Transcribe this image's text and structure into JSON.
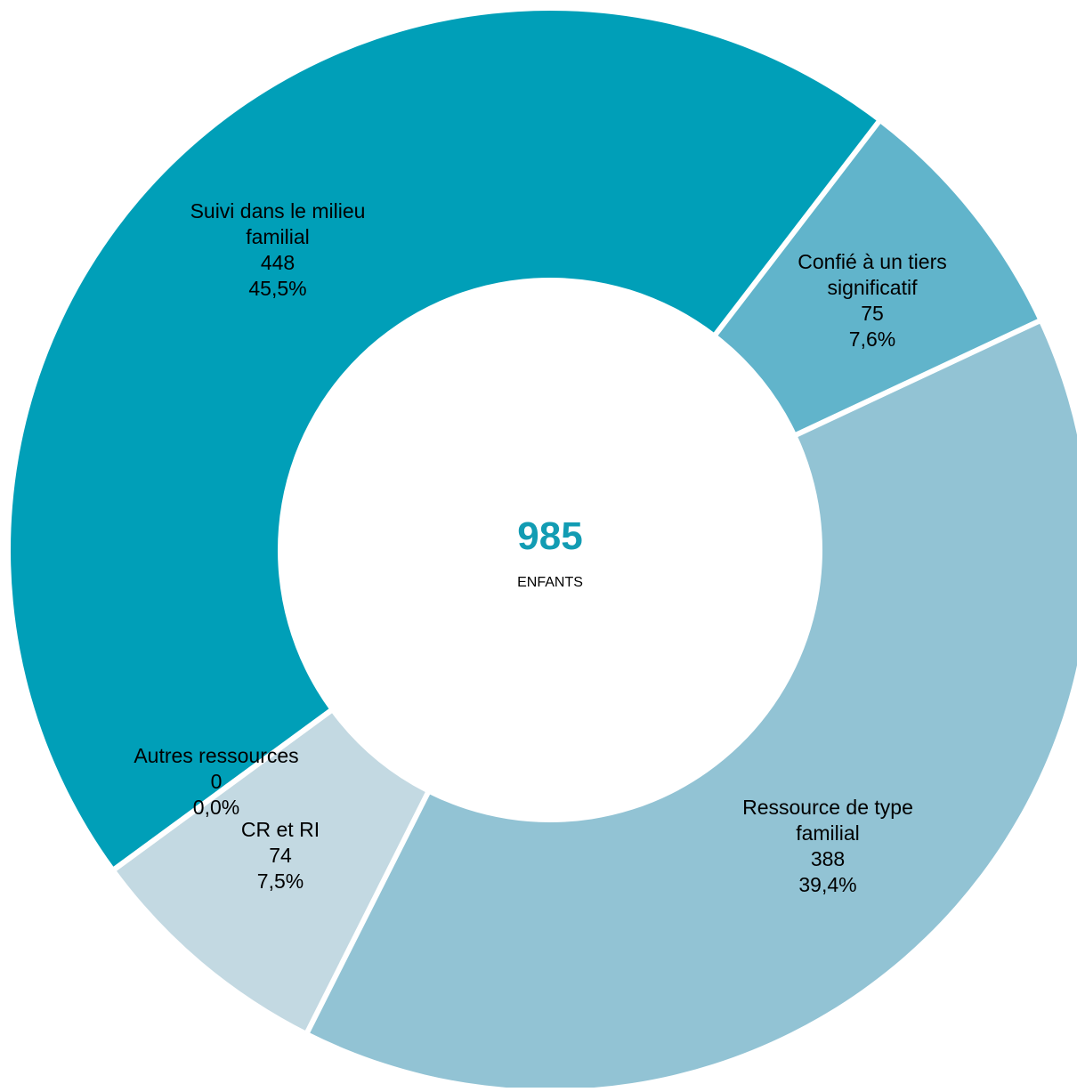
{
  "chart_data": {
    "type": "pie",
    "donut": true,
    "center": {
      "value": "985",
      "label": "ENFANTS"
    },
    "slices": [
      {
        "name_lines": [
          "Confié à un tiers",
          "significatif"
        ],
        "value": "75",
        "percent": "7,6%",
        "color": "#61b4cb"
      },
      {
        "name_lines": [
          "Ressource de type",
          "familial"
        ],
        "value": "388",
        "percent": "39,4%",
        "color": "#92c3d4"
      },
      {
        "name_lines": [
          "CR et RI"
        ],
        "value": "74",
        "percent": "7,5%",
        "color": "#c3d9e2"
      },
      {
        "name_lines": [
          "Autres ressources"
        ],
        "value": "0",
        "percent": "0,0%",
        "color": "#c3d9e2"
      },
      {
        "name_lines": [
          "Suivi dans le milieu",
          "familial"
        ],
        "value": "448",
        "percent": "45,5%",
        "color": "#009fb8"
      }
    ],
    "center_value_color": "#129cb3",
    "separator_color": "#ffffff"
  }
}
